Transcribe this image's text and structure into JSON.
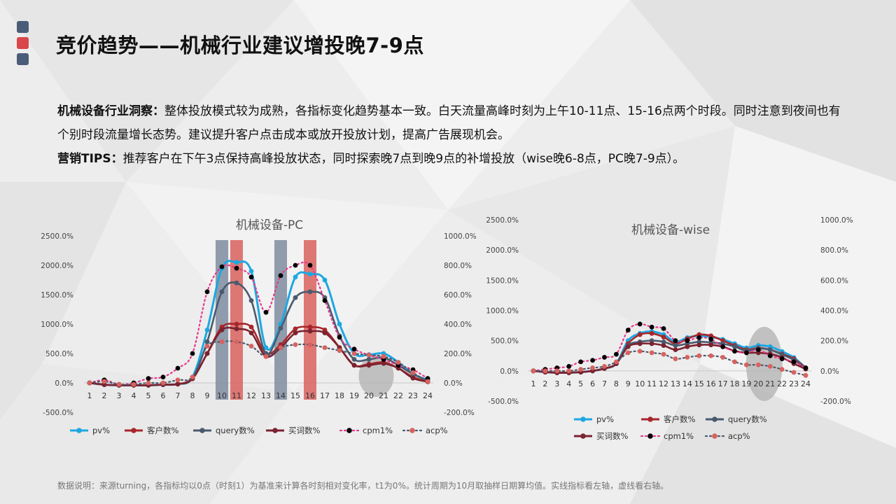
{
  "title": "竞价趋势——机械行业建议增投晚7-9点",
  "insight": {
    "label": "机械设备行业洞察",
    "text": "整体投放模式较为成熟，各指标变化趋势基本一致。白天流量高峰时刻为上午10-11点、15-16点两个时段。同时注意到夜间也有个别时段流量增长态势。建议提升客户点击成本或放开投放计划，提高广告展现机会。"
  },
  "tips": {
    "label": "营销TIPS",
    "text": "推荐客户在下午3点保持高峰投放状态，同时探索晚7点到晚9点的补增投放（wise晚6-8点，PC晚7-9点）。"
  },
  "colors": {
    "pv": "#1ea7e1",
    "customers": "#a8262a",
    "query": "#4a5a6e",
    "keywords": "#7b2330",
    "cpm": "#e8388a",
    "acp": "#4a5a6e",
    "highlight_blue": "#7f8da0",
    "highlight_red": "#d9625e",
    "ellipse": "#b4b4b4",
    "dots": [
      "#4a5d78",
      "#d9474b",
      "#4a5d78"
    ]
  },
  "note": "数据说明：来源turning，各指标均以0点（时刻1）为基准来计算各时刻相对变化率，t1为0%。统计周期为10月取抽样日期算均值。实线指标看左轴，虚线看右轴。",
  "chart_data": [
    {
      "type": "line",
      "title": "机械设备-PC",
      "x": [
        1,
        2,
        3,
        4,
        5,
        6,
        7,
        8,
        9,
        10,
        11,
        12,
        13,
        14,
        15,
        16,
        17,
        18,
        19,
        20,
        21,
        22,
        23,
        24
      ],
      "left_ticks": [
        "2500.0%",
        "2000.0%",
        "1500.0%",
        "1000.0%",
        "500.0%",
        "0.0%",
        "-500.0%"
      ],
      "right_ticks": [
        "1000.0%",
        "800.0%",
        "600.0%",
        "400.0%",
        "200.0%",
        "0.0%",
        "-200.0%"
      ],
      "ylim_left": [
        -500,
        2500
      ],
      "ylim_right": [
        -200,
        1000
      ],
      "highlight_hours": [
        {
          "x": 10,
          "color": "blue"
        },
        {
          "x": 11,
          "color": "red"
        },
        {
          "x": 14,
          "color": "blue"
        },
        {
          "x": 16,
          "color": "red"
        }
      ],
      "ellipse_hours": [
        19.5,
        21.5
      ],
      "series": [
        {
          "name": "pv%",
          "key": "pv",
          "axis": "left",
          "style": "solid",
          "values": [
            0,
            -30,
            -40,
            -40,
            -40,
            -30,
            -20,
            100,
            900,
            1950,
            2050,
            1900,
            600,
            1000,
            1800,
            1850,
            1750,
            1000,
            500,
            480,
            500,
            350,
            150,
            50
          ]
        },
        {
          "name": "客户数%",
          "key": "customers",
          "axis": "left",
          "style": "solid",
          "values": [
            0,
            -30,
            -40,
            -40,
            -40,
            -30,
            -20,
            80,
            500,
            950,
            1000,
            950,
            500,
            650,
            920,
            950,
            900,
            600,
            300,
            320,
            350,
            250,
            100,
            20
          ]
        },
        {
          "name": "query数%",
          "key": "query",
          "axis": "left",
          "style": "solid",
          "values": [
            0,
            -30,
            -40,
            -40,
            -40,
            -30,
            -20,
            80,
            700,
            1550,
            1700,
            1400,
            500,
            930,
            1450,
            1550,
            1450,
            800,
            400,
            400,
            430,
            300,
            150,
            40
          ]
        },
        {
          "name": "买词数%",
          "key": "keywords",
          "axis": "left",
          "style": "solid",
          "values": [
            0,
            -30,
            -40,
            -40,
            -40,
            -30,
            -20,
            70,
            500,
            900,
            920,
            850,
            450,
            600,
            850,
            880,
            850,
            600,
            300,
            300,
            330,
            250,
            80,
            20
          ]
        },
        {
          "name": "cpm1%",
          "key": "cpm",
          "axis": "right",
          "style": "dotted",
          "values": [
            0,
            20,
            -10,
            0,
            30,
            40,
            100,
            200,
            620,
            790,
            780,
            720,
            480,
            730,
            800,
            800,
            560,
            310,
            230,
            190,
            160,
            120,
            90,
            30
          ]
        },
        {
          "name": "acp%",
          "key": "acp",
          "axis": "right",
          "style": "dotted",
          "values": [
            0,
            10,
            -10,
            -10,
            0,
            0,
            20,
            40,
            250,
            280,
            280,
            250,
            180,
            240,
            260,
            260,
            240,
            220,
            200,
            190,
            180,
            140,
            70,
            10
          ]
        }
      ]
    },
    {
      "type": "line",
      "title": "机械设备-wise",
      "x": [
        1,
        2,
        3,
        4,
        5,
        6,
        7,
        8,
        9,
        10,
        11,
        12,
        13,
        14,
        15,
        16,
        17,
        18,
        19,
        20,
        21,
        22,
        23,
        24
      ],
      "left_ticks": [
        "2500.0%",
        "2000.0%",
        "1500.0%",
        "1000.0%",
        "500.0%",
        "0.0%",
        "-500.0%"
      ],
      "right_ticks": [
        "1000.0%",
        "800.0%",
        "600.0%",
        "400.0%",
        "200.0%",
        "0.0%",
        "-200.0%"
      ],
      "ylim_left": [
        -500,
        2500
      ],
      "ylim_right": [
        -200,
        1000
      ],
      "ellipse_hours": [
        19.2,
        21.8
      ],
      "series": [
        {
          "name": "pv%",
          "key": "pv",
          "axis": "left",
          "style": "solid",
          "values": [
            0,
            -20,
            -30,
            -30,
            -20,
            0,
            40,
            120,
            500,
            620,
            650,
            600,
            480,
            550,
            580,
            560,
            520,
            450,
            380,
            420,
            400,
            320,
            220,
            50
          ]
        },
        {
          "name": "客户数%",
          "key": "customers",
          "axis": "left",
          "style": "solid",
          "values": [
            0,
            -20,
            -30,
            -30,
            -20,
            0,
            40,
            120,
            450,
            600,
            620,
            560,
            450,
            530,
            600,
            580,
            500,
            420,
            350,
            380,
            350,
            280,
            200,
            50
          ]
        },
        {
          "name": "query数%",
          "key": "query",
          "axis": "left",
          "style": "solid",
          "values": [
            0,
            -20,
            -30,
            -30,
            -20,
            0,
            40,
            120,
            420,
            480,
            500,
            480,
            420,
            450,
            480,
            470,
            450,
            400,
            330,
            370,
            350,
            270,
            180,
            40
          ]
        },
        {
          "name": "买词数%",
          "key": "keywords",
          "axis": "left",
          "style": "solid",
          "values": [
            0,
            -20,
            -30,
            -30,
            -20,
            0,
            40,
            120,
            400,
            450,
            450,
            420,
            350,
            400,
            430,
            430,
            400,
            330,
            300,
            300,
            280,
            220,
            120,
            30
          ]
        },
        {
          "name": "cpm1%",
          "key": "cpm",
          "axis": "right",
          "style": "dotted",
          "values": [
            0,
            10,
            20,
            30,
            60,
            70,
            90,
            110,
            270,
            310,
            290,
            280,
            200,
            200,
            220,
            210,
            160,
            130,
            120,
            140,
            100,
            80,
            60,
            20
          ]
        },
        {
          "name": "acp%",
          "key": "acp",
          "axis": "right",
          "style": "dotted",
          "values": [
            0,
            0,
            0,
            0,
            10,
            20,
            30,
            60,
            120,
            130,
            120,
            110,
            80,
            90,
            100,
            100,
            90,
            60,
            40,
            40,
            30,
            10,
            -10,
            -30
          ]
        }
      ]
    }
  ]
}
